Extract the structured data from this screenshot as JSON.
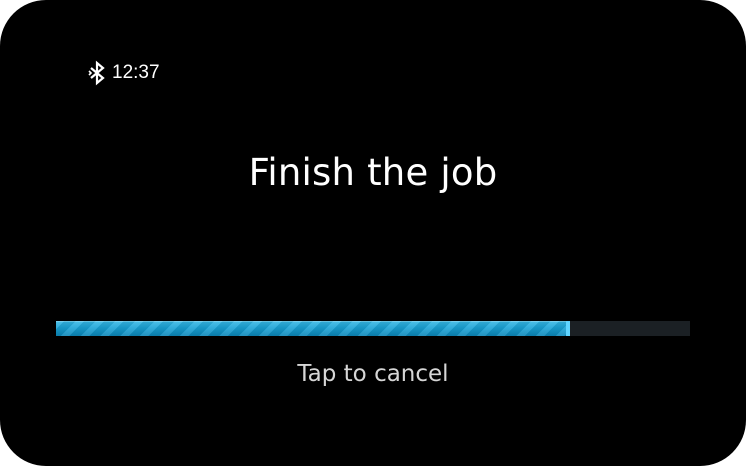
{
  "status": {
    "bluetooth_icon": "bluetooth-icon",
    "time": "12:37"
  },
  "title": "Finish the job",
  "progress": {
    "fraction": 0.81
  },
  "cancel_label": "Tap to cancel",
  "colors": {
    "background": "#000000",
    "accent": "#1aa3d6",
    "track": "#1b2024",
    "text": "#ffffff",
    "secondary_text": "#d6d6d6"
  }
}
